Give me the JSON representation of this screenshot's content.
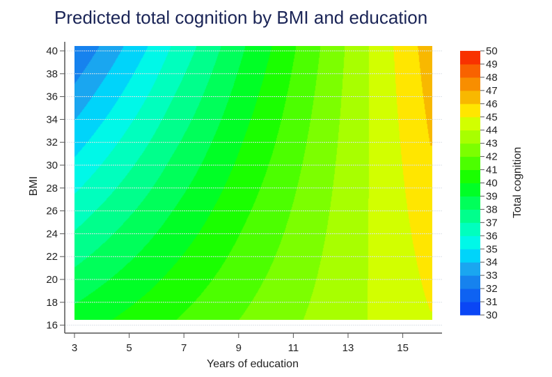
{
  "chart_data": {
    "type": "heatmap",
    "subtype": "filled contour",
    "title": "Predicted total cognition by BMI and education",
    "xlabel": "Years of education",
    "ylabel": "BMI",
    "zlabel": "Total cognition",
    "xlim": [
      3,
      16
    ],
    "ylim": [
      16.5,
      40.4
    ],
    "x_ticks": [
      "3",
      "5",
      "7",
      "9",
      "11",
      "13",
      "15"
    ],
    "y_ticks": [
      "16",
      "18",
      "20",
      "22",
      "24",
      "26",
      "28",
      "30",
      "32",
      "34",
      "36",
      "38",
      "40"
    ],
    "z_ticks": [
      "50",
      "49",
      "48",
      "47",
      "46",
      "45",
      "44",
      "43",
      "42",
      "41",
      "40",
      "39",
      "38",
      "37",
      "36",
      "35",
      "34",
      "33",
      "32",
      "31",
      "30"
    ],
    "z_levels": [
      30,
      31,
      32,
      33,
      34,
      35,
      36,
      37,
      38,
      39,
      40,
      41,
      42,
      43,
      44,
      45,
      46,
      47,
      48,
      49,
      50
    ],
    "band_colors": [
      "#0a46f5",
      "#0e62f2",
      "#1682ee",
      "#1aa6f0",
      "#00d4fa",
      "#00f8e8",
      "#00ffbe",
      "#00ff8c",
      "#00ff5a",
      "#00ff26",
      "#1aff00",
      "#4cff00",
      "#7cff00",
      "#a8ff00",
      "#d2ff00",
      "#ffe600",
      "#f8b800",
      "#f88e00",
      "#f86200",
      "#f83200"
    ],
    "surface_profiles": {
      "bmi_low": {
        "bmi": 16.5,
        "education": [
          3,
          4.35,
          6.71,
          9.0,
          11.35,
          13.69,
          16
        ],
        "cognition": [
          39.43,
          40,
          41,
          42,
          43,
          44,
          44.95
        ]
      },
      "bmi_high": {
        "bmi": 40.4,
        "education": [
          3,
          3.89,
          4.78,
          5.67,
          6.51,
          7.45,
          8.34,
          9.23,
          10.2,
          11.09,
          11.98,
          12.87,
          13.76,
          14.65,
          15.54,
          16
        ],
        "cognition": [
          32,
          33,
          34,
          35,
          36,
          37,
          38,
          39,
          40,
          41,
          42,
          43,
          44,
          45,
          46,
          46.6
        ]
      }
    },
    "grid": "horizontal",
    "legend": "right colorbar"
  }
}
